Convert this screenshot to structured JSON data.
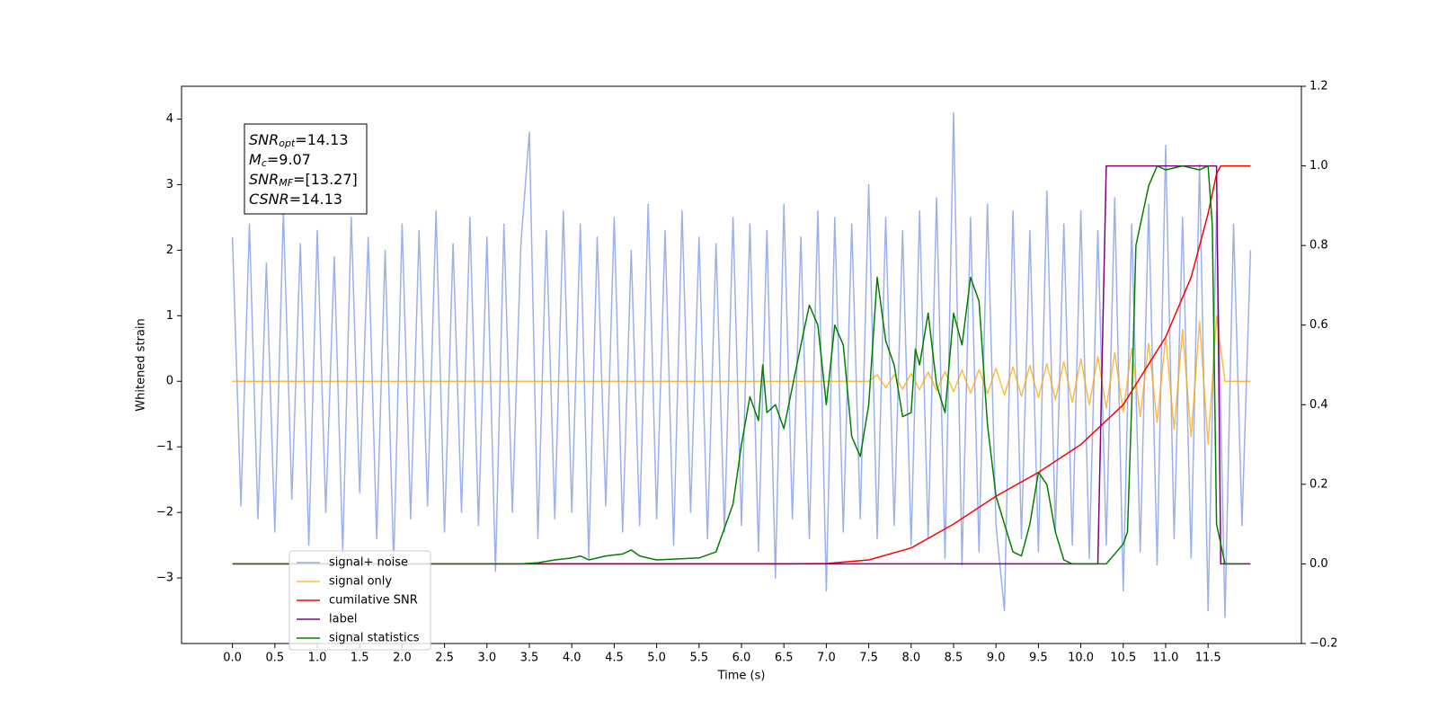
{
  "chart_data": {
    "type": "line",
    "xlabel": "Time (s)",
    "ylabel": "Whitened strain",
    "xlim": [
      -0.6,
      12.6
    ],
    "ylim": [
      -4.0,
      4.5
    ],
    "y2lim": [
      -0.2,
      1.2
    ],
    "xticks": [
      {
        "value": 0,
        "label": "0.0"
      },
      0.5,
      {
        "value": 1,
        "label": "1.0"
      },
      1.5,
      {
        "value": 2,
        "label": "2.0"
      },
      2.5,
      {
        "value": 3,
        "label": "3.0"
      },
      3.5,
      {
        "value": 4,
        "label": "4.0"
      },
      4.5,
      {
        "value": 5,
        "label": "5.0"
      },
      5.5,
      {
        "value": 6,
        "label": "6.0"
      },
      6.5,
      {
        "value": 7,
        "label": "7.0"
      },
      7.5,
      {
        "value": 8,
        "label": "8.0"
      },
      8.5,
      {
        "value": 9,
        "label": "9.0"
      },
      9.5,
      {
        "value": 10,
        "label": "10.0"
      },
      10.5,
      {
        "value": 11,
        "label": "11.0"
      },
      11.5
    ],
    "yticks": [
      {
        "value": -3,
        "label": "−3"
      },
      {
        "value": -2,
        "label": "−2"
      },
      {
        "value": -1,
        "label": "−1"
      },
      0,
      1,
      2,
      3,
      4
    ],
    "y2ticks": [
      {
        "value": -0.2,
        "label": "−0.2"
      },
      {
        "value": 0,
        "label": "0.0"
      },
      0.2,
      0.4,
      0.6,
      0.8,
      {
        "value": 1,
        "label": "1.0"
      },
      1.2
    ],
    "legend": "lower left",
    "annotations": [
      {
        "name": "SNR",
        "sub": "opt",
        "text": "=14.13"
      },
      {
        "name": "M",
        "sub": "c",
        "text": "=9.07"
      },
      {
        "name": "SNR",
        "sub": "MF",
        "text": "=[13.27]"
      },
      {
        "name": "CSNR",
        "text": "=14.13"
      }
    ],
    "x": [
      0,
      0.1,
      0.2,
      0.3,
      0.4,
      0.5,
      0.6,
      0.7,
      0.8,
      0.9,
      1,
      1.1,
      1.2,
      1.3,
      1.4,
      1.5,
      1.6,
      1.7,
      1.8,
      1.9,
      2,
      2.1,
      2.2,
      2.3,
      2.4,
      2.5,
      2.6,
      2.7,
      2.8,
      2.9,
      3,
      3.1,
      3.2,
      3.3,
      3.4,
      3.5,
      3.6,
      3.7,
      3.8,
      3.9,
      4,
      4.1,
      4.2,
      4.3,
      4.4,
      4.5,
      4.6,
      4.7,
      4.8,
      4.9,
      5,
      5.1,
      5.2,
      5.3,
      5.4,
      5.5,
      5.6,
      5.7,
      5.8,
      5.9,
      6,
      6.1,
      6.2,
      6.3,
      6.4,
      6.5,
      6.6,
      6.7,
      6.8,
      6.9,
      7,
      7.1,
      7.2,
      7.3,
      7.4,
      7.5,
      7.6,
      7.7,
      7.8,
      7.9,
      8,
      8.1,
      8.2,
      8.3,
      8.4,
      8.5,
      8.6,
      8.7,
      8.8,
      8.9,
      9,
      9.1,
      9.2,
      9.3,
      9.4,
      9.5,
      9.6,
      9.7,
      9.8,
      9.9,
      10,
      10.1,
      10.2,
      10.3,
      10.4,
      10.5,
      10.6,
      10.7,
      10.8,
      10.9,
      11,
      11.1,
      11.2,
      11.3,
      11.4,
      11.5,
      11.6,
      11.7,
      11.8,
      11.9,
      12
    ],
    "series": [
      {
        "name": "signal+ noise",
        "color": "#7b96e8",
        "values": [
          2.2,
          -1.9,
          2.4,
          -2.1,
          1.8,
          -2.3,
          2.6,
          -1.8,
          2.1,
          -2.5,
          2.3,
          -2.0,
          1.9,
          -2.6,
          2.5,
          -1.7,
          2.2,
          -2.4,
          2.0,
          -2.8,
          2.4,
          -2.1,
          2.3,
          -1.9,
          2.6,
          -2.3,
          2.1,
          -2.0,
          2.5,
          -2.2,
          2.2,
          -2.9,
          2.4,
          -2.0,
          2.1,
          3.8,
          -2.4,
          2.3,
          -2.1,
          2.6,
          -2.0,
          2.4,
          -2.7,
          2.2,
          -1.9,
          2.5,
          -2.3,
          2.0,
          -2.2,
          2.7,
          -2.1,
          2.3,
          -2.5,
          2.6,
          -2.0,
          2.2,
          -2.4,
          2.1,
          -2.3,
          2.5,
          -2.2,
          2.4,
          -2.6,
          2.3,
          -3.0,
          2.7,
          -2.1,
          2.2,
          -2.4,
          2.6,
          -3.2,
          2.5,
          -2.3,
          2.4,
          -2.1,
          3.0,
          -2.4,
          2.5,
          -2.2,
          2.3,
          -2.5,
          2.6,
          -2.4,
          2.8,
          -2.7,
          4.1,
          -2.8,
          2.5,
          -2.6,
          2.7,
          -2.2,
          -3.5,
          2.6,
          -2.4,
          2.3,
          -2.6,
          2.9,
          -2.3,
          2.4,
          -2.5,
          2.6,
          -2.7,
          2.3,
          -2.5,
          2.8,
          -3.2,
          2.4,
          -2.6,
          2.7,
          -2.8,
          3.6,
          -2.4,
          2.5,
          -2.7,
          3.3,
          -3.5,
          2.6,
          -3.6,
          2.4,
          -2.2,
          2.0
        ]
      },
      {
        "name": "signal only",
        "color": "#ffa500",
        "values": [
          0,
          0,
          0,
          0,
          0,
          0,
          0,
          0,
          0,
          0,
          0,
          0,
          0,
          0,
          0,
          0,
          0,
          0,
          0,
          0,
          0,
          0,
          0,
          0,
          0,
          0,
          0,
          0,
          0,
          0,
          0,
          0,
          0,
          0,
          0,
          0,
          0,
          0,
          0,
          0,
          0,
          0,
          0,
          0,
          0,
          0,
          0,
          0,
          0,
          0,
          0,
          0,
          0,
          0,
          0,
          0,
          0,
          0,
          0,
          0,
          0,
          0,
          0,
          0,
          0,
          0,
          0,
          0,
          0,
          0,
          0,
          0,
          0,
          0,
          0,
          0,
          0.1,
          -0.1,
          0.1,
          -0.12,
          0.12,
          -0.13,
          0.14,
          -0.14,
          0.15,
          -0.16,
          0.17,
          -0.18,
          0.18,
          -0.19,
          0.2,
          -0.21,
          0.22,
          -0.23,
          0.24,
          -0.25,
          0.27,
          -0.28,
          0.3,
          -0.32,
          0.34,
          -0.36,
          0.38,
          -0.41,
          0.44,
          -0.47,
          0.5,
          -0.54,
          0.58,
          -0.63,
          0.68,
          -0.73,
          0.79,
          -0.85,
          0.91,
          -0.96,
          1.0,
          0,
          0,
          0,
          0
        ]
      },
      {
        "name": "cumilative SNR",
        "color": "#ff0000",
        "axis": "y2",
        "x": [
          0,
          6.5,
          7.0,
          7.5,
          8.0,
          8.5,
          9.0,
          9.5,
          10.0,
          10.5,
          11.0,
          11.3,
          11.5,
          11.6,
          11.65,
          12.0
        ],
        "values": [
          0,
          0,
          0.001,
          0.01,
          0.04,
          0.1,
          0.17,
          0.23,
          0.3,
          0.4,
          0.57,
          0.72,
          0.88,
          0.98,
          1.0,
          1.0
        ]
      },
      {
        "name": "label",
        "color": "#800080",
        "axis": "y2",
        "x": [
          0,
          10.2,
          10.3,
          11.6,
          11.65,
          12.0
        ],
        "values": [
          0,
          0,
          1,
          1,
          0,
          0
        ]
      },
      {
        "name": "signal statistics",
        "color": "#008000",
        "axis": "y2",
        "x": [
          0,
          3.4,
          3.6,
          3.8,
          4.0,
          4.1,
          4.2,
          4.4,
          4.6,
          4.7,
          4.8,
          5.0,
          5.5,
          5.7,
          5.8,
          5.9,
          6.0,
          6.1,
          6.2,
          6.25,
          6.3,
          6.4,
          6.5,
          6.7,
          6.8,
          6.9,
          7.0,
          7.1,
          7.2,
          7.3,
          7.4,
          7.5,
          7.6,
          7.7,
          7.8,
          7.9,
          8.0,
          8.05,
          8.1,
          8.2,
          8.3,
          8.4,
          8.5,
          8.6,
          8.7,
          8.8,
          8.9,
          9.0,
          9.1,
          9.2,
          9.3,
          9.4,
          9.5,
          9.6,
          9.7,
          9.8,
          9.9,
          10.3,
          10.5,
          10.55,
          10.6,
          10.65,
          10.8,
          10.9,
          11.0,
          11.2,
          11.4,
          11.5,
          11.55,
          11.6,
          11.7,
          11.9
        ],
        "values": [
          0,
          0,
          0.003,
          0.01,
          0.015,
          0.02,
          0.01,
          0.02,
          0.025,
          0.035,
          0.02,
          0.01,
          0.015,
          0.03,
          0.09,
          0.15,
          0.3,
          0.42,
          0.36,
          0.5,
          0.38,
          0.4,
          0.34,
          0.55,
          0.65,
          0.6,
          0.4,
          0.6,
          0.55,
          0.32,
          0.27,
          0.4,
          0.72,
          0.56,
          0.5,
          0.37,
          0.38,
          0.54,
          0.5,
          0.63,
          0.45,
          0.38,
          0.63,
          0.55,
          0.72,
          0.66,
          0.35,
          0.17,
          0.1,
          0.03,
          0.02,
          0.1,
          0.23,
          0.2,
          0.08,
          0.01,
          0,
          0,
          0.05,
          0.08,
          0.4,
          0.8,
          0.95,
          1.0,
          0.99,
          1.0,
          0.99,
          1.0,
          0.85,
          0.1,
          0,
          0
        ]
      }
    ]
  }
}
